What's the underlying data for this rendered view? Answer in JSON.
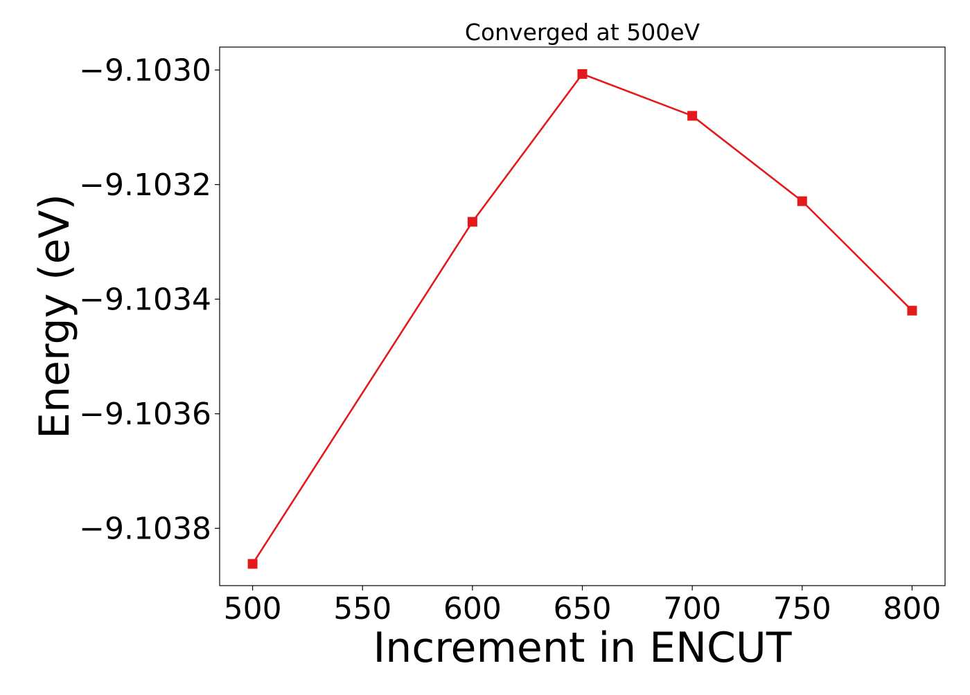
{
  "chart_data": {
    "type": "line",
    "title": "Converged at 500eV",
    "xlabel": "Increment in ENCUT",
    "ylabel": "Energy (eV)",
    "xlim": [
      485,
      815
    ],
    "ylim": [
      -9.1039,
      -9.10296
    ],
    "xticks": [
      500,
      550,
      600,
      650,
      700,
      750,
      800
    ],
    "xtick_labels": [
      "500",
      "550",
      "600",
      "650",
      "700",
      "750",
      "800"
    ],
    "yticks": [
      -9.1038,
      -9.1036,
      -9.1034,
      -9.1032,
      -9.103
    ],
    "ytick_labels": [
      "−9.1038",
      "−9.1036",
      "−9.1034",
      "−9.1032",
      "−9.1030"
    ],
    "grid": false,
    "legend": "none",
    "series": [
      {
        "color": "#e31a1c",
        "marker": "square",
        "x": [
          500,
          600,
          650,
          700,
          750,
          800
        ],
        "y": [
          -9.103862,
          -9.103265,
          -9.103007,
          -9.10308,
          -9.103229,
          -9.10342
        ]
      }
    ]
  }
}
